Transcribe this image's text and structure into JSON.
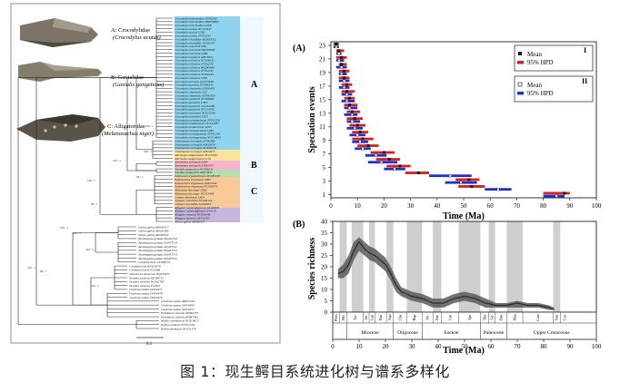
{
  "caption": "图 1：现生鳄目系统进化树与谱系多样化",
  "tree_panel": {
    "families": [
      {
        "label": "A: Crocodylidae",
        "species": "(Crocodylus acutus)"
      },
      {
        "label": "B: Gavialidae",
        "species": "(Gavialis gangeticus)"
      },
      {
        "label": "C: Alligatoridae",
        "species": "(Melanosuchus niger)"
      }
    ],
    "clades": [
      "A",
      "B",
      "C"
    ],
    "clade_colors": {
      "A": "#8fd3ee",
      "B": "#f4b8cc",
      "C": "#f8c999",
      "D": "#b7ddb0",
      "E": "#c4b6dc",
      "F": "#fde29c"
    },
    "scale_label": "0.1",
    "node_support": [
      "100 / 1",
      "100 / 1",
      "100 / 1",
      "99 / 1",
      "100 / 1",
      "98 / 1",
      "100 / 1",
      "100 / 1",
      "100 / 1",
      "98 / 1",
      "100 / 1",
      "100 / 1"
    ],
    "tips": [
      "Crocodylus intermedius JF502242",
      "Crocodylus intermedius HM636895",
      "Crocodylus intermedius L66B",
      "Crocodylus acutus NC015647",
      "Crocodylus acutus L3D2",
      "Crocodylus acutus JF502241",
      "Crocodylus rhombifer HQ595012",
      "Crocodylus rhombifer JF502247",
      "Crocodylus moreletii L86",
      "Crocodylus moreletii HQ585889",
      "Crocodylus moreletii L086",
      "Crocodylus niloticus AJ810452",
      "Crocodylus niloticus NC008142",
      "Crocodylus niloticus JF502240",
      "Crocodylus niloticus HQ585890",
      "Crocodylus niloticus JF502245",
      "Crocodylus niloticus JF502243",
      "Crocodylus niloticus L090",
      "Crocodylus porosus DQ273698",
      "Crocodylus porosus NC008143",
      "Crocodylus siamensis AJ810453",
      "Crocodylus siamensis L32",
      "Crocodylus siamensis EF581859",
      "Crocodylus palustris EU998087",
      "Crocodylus palustris L4E5",
      "Crocodylus palustris GU144286",
      "Crocodylus palustris NC014706",
      "Crocodylus johnstoni NC015238",
      "Crocodylus johnstoni L075",
      "Crocodylus novaeguineae JF502250",
      "Crocodylus mindorensis GU144287",
      "Crocodylus mindorensis L095",
      "Crocodylus novaeguineae L085",
      "Crocodylus novaeguineae JF502248",
      "Crocodylus novaeguineae NC014904",
      "Osteolaemus tetraspis JN781883",
      "Osteolaemus tetraspis AJ810454",
      "Osteolaemus tetraspis NC009728",
      "Osteolaemus tetraspis AJ810455",
      "Mecistops cataphractus NC015651",
      "Mecistops cataphractus L101",
      "Tomistoma schlegelii L084",
      "Tomistoma schlegelii AJ810457",
      "Gavialis gangeticus NC008241",
      "Gavialis gangeticus AJ810455",
      "Paleosuchus palpebrosus NC009729",
      "Paleosuchus trigonatus L083",
      "Paleosuchus trigonatus AJ810456",
      "Paleosuchus trigonatus NC009735",
      "Melanosuchus niger L082",
      "Melanosuchus niger NC015453",
      "Caiman latirostris L4E4",
      "Caiman crocodilus NC002744",
      "Caiman crocodilus AJ404872",
      "Alligator mississippiensis AJ404873",
      "Alligator mississippiensis Y13113",
      "Alligator sinensis NC004448",
      "Alligator sinensis AF511507",
      "Gallus gallus AB086097",
      "Gallus gallus AP003317",
      "Gallus gallus AP003580",
      "Gallus gallus AP003318",
      "Taeniopygia guttata DQ422742",
      "Taeniopygia guttata DQ453513",
      "Taeniopygia guttata DQ453511",
      "Taeniopygia guttata DQ422741",
      "Taeniopygia guttata DQ453514",
      "Taeniopygia guttata DQ453512",
      "Columba livia GU908131",
      "Columba livia KF926376",
      "Columba livia KJ722068",
      "Spheniscus demersus DQ453935",
      "Struthio camelus AF338715",
      "Struthio camelus NC002785",
      "Struthio camelus Y12025",
      "Chelonia mydas JX454971",
      "Chelonia mydas JX454978",
      "Chelonia mydas JX454970",
      "Chelonia mydas AB012104",
      "Chelonia mydas JX454990",
      "Chelonia mydas JX454972",
      "Pelodiscus sinensis AY962573",
      "Pelodiscus sinensis AY687385",
      "Anolis carolinensis NC010972",
      "Python molurus EU011976",
      "Python bivittatus NC021479"
    ]
  },
  "panel_a": {
    "label": "(A)",
    "ylabel": "Speciation events",
    "xlabel": "Time (Ma)",
    "legend_I": {
      "title": "I",
      "mean": "Mean",
      "hpd": "95% HPD",
      "color": "#d81e1e"
    },
    "legend_II": {
      "title": "II",
      "mean": "Mean",
      "hpd": "95% HPD",
      "color": "#1f2fcf"
    }
  },
  "panel_b": {
    "label": "(B)",
    "ylabel": "Species richness",
    "xlabel": "Time (Ma)",
    "stages": [
      "Pleis",
      "Plio",
      "Tor",
      "Ser",
      "Lan",
      "Bur",
      "Aqu",
      "Cha",
      "Rup",
      "Pri",
      "Bar",
      "Lut",
      "Ypr",
      "Tha",
      "Sel",
      "Dan",
      "Maa",
      "Cam",
      "San",
      "Con"
    ],
    "epochs": [
      "Miocene",
      "Oligocene",
      "Eocene",
      "Paleocene",
      "Upper Cretaceous"
    ]
  },
  "chart_data": [
    {
      "type": "scatter",
      "title": "",
      "xlabel": "Time (Ma)",
      "ylabel": "Speciation events",
      "xlim": [
        0,
        100
      ],
      "ylim": [
        0,
        23
      ],
      "xticks": [
        0,
        10,
        20,
        30,
        40,
        50,
        60,
        70,
        80,
        90,
        100
      ],
      "yticks": [
        1,
        3,
        5,
        7,
        9,
        11,
        13,
        15,
        17,
        19,
        21,
        23
      ],
      "legend": "top-right",
      "series": [
        {
          "name": "I",
          "color": "#d81e1e",
          "points": [
            {
              "event": 1,
              "mean": 88,
              "hpd": [
                80,
                90
              ]
            },
            {
              "event": 2,
              "mean": 53,
              "hpd": [
                48,
                58
              ]
            },
            {
              "event": 3,
              "mean": 52,
              "hpd": [
                47,
                56
              ]
            },
            {
              "event": 4,
              "mean": 33,
              "hpd": [
                28,
                37
              ]
            },
            {
              "event": 5,
              "mean": 26,
              "hpd": [
                21,
                30
              ]
            },
            {
              "event": 6,
              "mean": 22,
              "hpd": [
                17,
                26
              ]
            },
            {
              "event": 7,
              "mean": 20,
              "hpd": [
                15,
                24
              ]
            },
            {
              "event": 8,
              "mean": 14,
              "hpd": [
                10,
                18
              ]
            },
            {
              "event": 9,
              "mean": 12,
              "hpd": [
                8,
                16
              ]
            },
            {
              "event": 10,
              "mean": 11,
              "hpd": [
                8,
                14
              ]
            },
            {
              "event": 11,
              "mean": 10,
              "hpd": [
                7,
                13
              ]
            },
            {
              "event": 12,
              "mean": 9,
              "hpd": [
                6,
                12
              ]
            },
            {
              "event": 13,
              "mean": 8,
              "hpd": [
                6,
                11
              ]
            },
            {
              "event": 14,
              "mean": 7,
              "hpd": [
                5,
                10
              ]
            },
            {
              "event": 15,
              "mean": 7,
              "hpd": [
                5,
                9
              ]
            },
            {
              "event": 16,
              "mean": 6,
              "hpd": [
                4,
                9
              ]
            },
            {
              "event": 17,
              "mean": 6,
              "hpd": [
                4,
                8
              ]
            },
            {
              "event": 18,
              "mean": 5,
              "hpd": [
                3,
                7
              ]
            },
            {
              "event": 19,
              "mean": 5,
              "hpd": [
                3,
                7
              ]
            },
            {
              "event": 20,
              "mean": 4,
              "hpd": [
                3,
                6
              ]
            },
            {
              "event": 21,
              "mean": 4,
              "hpd": [
                2,
                6
              ]
            },
            {
              "event": 22,
              "mean": 3,
              "hpd": [
                2,
                5
              ]
            },
            {
              "event": 23,
              "mean": 2,
              "hpd": [
                1,
                3
              ]
            }
          ]
        },
        {
          "name": "II",
          "color": "#1f2fcf",
          "points": [
            {
              "event": 1,
              "mean": 85,
              "hpd": [
                80,
                88
              ]
            },
            {
              "event": 2,
              "mean": 63,
              "hpd": [
                58,
                68
              ]
            },
            {
              "event": 3,
              "mean": 49,
              "hpd": [
                43,
                55
              ]
            },
            {
              "event": 4,
              "mean": 45,
              "hpd": [
                37,
                53
              ]
            },
            {
              "event": 5,
              "mean": 24,
              "hpd": [
                20,
                28
              ]
            },
            {
              "event": 6,
              "mean": 19,
              "hpd": [
                14,
                25
              ]
            },
            {
              "event": 7,
              "mean": 17,
              "hpd": [
                13,
                21
              ]
            },
            {
              "event": 8,
              "mean": 12,
              "hpd": [
                9,
                15
              ]
            },
            {
              "event": 9,
              "mean": 11,
              "hpd": [
                8,
                14
              ]
            },
            {
              "event": 10,
              "mean": 10,
              "hpd": [
                7,
                13
              ]
            },
            {
              "event": 11,
              "mean": 9,
              "hpd": [
                6,
                12
              ]
            },
            {
              "event": 12,
              "mean": 8,
              "hpd": [
                6,
                11
              ]
            },
            {
              "event": 13,
              "mean": 8,
              "hpd": [
                5,
                10
              ]
            },
            {
              "event": 14,
              "mean": 7,
              "hpd": [
                5,
                10
              ]
            },
            {
              "event": 15,
              "mean": 6,
              "hpd": [
                4,
                9
              ]
            },
            {
              "event": 16,
              "mean": 6,
              "hpd": [
                4,
                8
              ]
            },
            {
              "event": 17,
              "mean": 5,
              "hpd": [
                3,
                7
              ]
            },
            {
              "event": 18,
              "mean": 5,
              "hpd": [
                3,
                7
              ]
            },
            {
              "event": 19,
              "mean": 4,
              "hpd": [
                3,
                6
              ]
            },
            {
              "event": 20,
              "mean": 4,
              "hpd": [
                2,
                6
              ]
            },
            {
              "event": 21,
              "mean": 3,
              "hpd": [
                2,
                5
              ]
            },
            {
              "event": 22,
              "mean": 3,
              "hpd": [
                2,
                4
              ]
            },
            {
              "event": 23,
              "mean": 2,
              "hpd": [
                1,
                3
              ]
            }
          ]
        }
      ]
    },
    {
      "type": "area",
      "title": "",
      "xlabel": "Time (Ma)",
      "ylabel": "Species richness",
      "xlim": [
        0,
        100
      ],
      "ylim": [
        0,
        40
      ],
      "xticks": [
        0,
        10,
        20,
        30,
        40,
        50,
        60,
        70,
        80,
        90,
        100
      ],
      "yticks": [
        0,
        5,
        10,
        15,
        20,
        25,
        30,
        35,
        40
      ],
      "grey_bands_ma": [
        [
          2.6,
          5.3
        ],
        [
          7.2,
          11.6
        ],
        [
          13.8,
          16.0
        ],
        [
          20.4,
          23.0
        ],
        [
          28.1,
          33.9
        ],
        [
          38.0,
          41.2
        ],
        [
          47.8,
          56.0
        ],
        [
          59.2,
          61.6
        ],
        [
          66.0,
          72.1
        ],
        [
          83.6,
          86.3
        ]
      ],
      "x": [
        2,
        4,
        6,
        8,
        10,
        12,
        14,
        16,
        18,
        20,
        22,
        24,
        26,
        28,
        30,
        34,
        38,
        42,
        46,
        50,
        54,
        58,
        62,
        66,
        70,
        74,
        78,
        82,
        84
      ],
      "mean": [
        17,
        18,
        21,
        27,
        31,
        28,
        26,
        25,
        23,
        21,
        17,
        12,
        9,
        8,
        7,
        6,
        4,
        4,
        6,
        7,
        6,
        4,
        3,
        3,
        4,
        3,
        3,
        2,
        1
      ],
      "lower": [
        15,
        15,
        17,
        23,
        27,
        25,
        23,
        22,
        20,
        18,
        14,
        9,
        7,
        6,
        5,
        4,
        2,
        2,
        4,
        5,
        4,
        2,
        2,
        2,
        2,
        2,
        2,
        1,
        1
      ],
      "upper": [
        19,
        21,
        25,
        31,
        33,
        31,
        29,
        28,
        26,
        24,
        20,
        15,
        11,
        10,
        9,
        8,
        6,
        6,
        8,
        9,
        8,
        6,
        4,
        4,
        5,
        4,
        4,
        3,
        2
      ]
    }
  ]
}
